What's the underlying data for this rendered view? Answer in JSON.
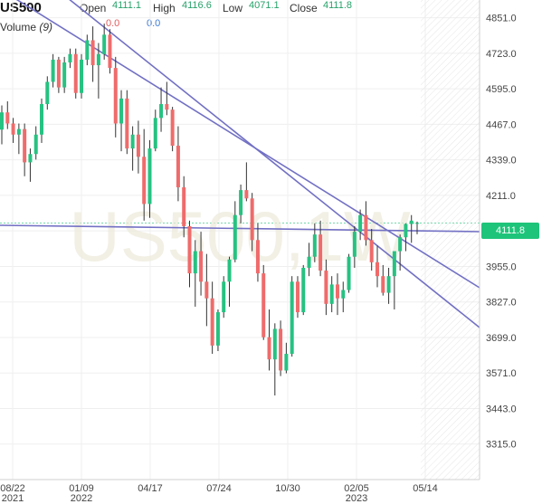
{
  "header": {
    "symbol": "US500",
    "open_label": "Open",
    "open_value": "4111.1",
    "high_label": "High",
    "high_value": "4116.6",
    "low_label": "Low",
    "low_value": "4071.1",
    "close_label": "Close",
    "close_value": "4111.8",
    "volume_label": "Volume",
    "volume_period": "(9)",
    "volume_value_1": "0.0",
    "volume_value_2": "0.0"
  },
  "watermark": "US500,1W",
  "last_price_tag": "4111.8",
  "colors": {
    "up": "#26c281",
    "down": "#ef6b6b",
    "trendline": "#6f6cc0",
    "grid": "#ececec",
    "last_price": "#1ec47a"
  },
  "chart_data": {
    "type": "candlestick",
    "timeframe": "1W",
    "ylim": [
      3187,
      4915
    ],
    "y_ticks": [
      "4851.0",
      "4723.0",
      "4595.0",
      "4467.0",
      "4339.0",
      "4211.0",
      "4083.0",
      "3955.0",
      "3827.0",
      "3699.0",
      "3571.0",
      "3443.0",
      "3315.0"
    ],
    "x_ticks": [
      {
        "label": "08/22",
        "sub": "2021"
      },
      {
        "label": "01/09",
        "sub": "2022"
      },
      {
        "label": "04/17",
        "sub": ""
      },
      {
        "label": "07/24",
        "sub": ""
      },
      {
        "label": "10/30",
        "sub": ""
      },
      {
        "label": "02/05",
        "sub": "2023"
      },
      {
        "label": "05/14",
        "sub": ""
      }
    ],
    "last_price": 4111.8,
    "candles": [
      [
        4448,
        4535,
        4395,
        4510
      ],
      [
        4510,
        4550,
        4450,
        4470
      ],
      [
        4470,
        4490,
        4400,
        4430
      ],
      [
        4430,
        4470,
        4360,
        4450
      ],
      [
        4450,
        4470,
        4280,
        4330
      ],
      [
        4330,
        4380,
        4260,
        4360
      ],
      [
        4360,
        4460,
        4340,
        4430
      ],
      [
        4430,
        4560,
        4400,
        4540
      ],
      [
        4540,
        4640,
        4520,
        4620
      ],
      [
        4620,
        4720,
        4600,
        4700
      ],
      [
        4700,
        4710,
        4580,
        4600
      ],
      [
        4600,
        4710,
        4580,
        4690
      ],
      [
        4690,
        4740,
        4670,
        4720
      ],
      [
        4720,
        4740,
        4560,
        4580
      ],
      [
        4580,
        4720,
        4560,
        4700
      ],
      [
        4700,
        4790,
        4680,
        4770
      ],
      [
        4770,
        4820,
        4620,
        4680
      ],
      [
        4680,
        4760,
        4560,
        4720
      ],
      [
        4720,
        4830,
        4700,
        4790
      ],
      [
        4790,
        4810,
        4650,
        4670
      ],
      [
        4670,
        4710,
        4420,
        4470
      ],
      [
        4470,
        4590,
        4370,
        4560
      ],
      [
        4560,
        4590,
        4360,
        4380
      ],
      [
        4380,
        4460,
        4300,
        4430
      ],
      [
        4430,
        4480,
        4290,
        4350
      ],
      [
        4350,
        4450,
        4120,
        4180
      ],
      [
        4180,
        4410,
        4130,
        4380
      ],
      [
        4380,
        4520,
        4370,
        4490
      ],
      [
        4490,
        4600,
        4440,
        4540
      ],
      [
        4540,
        4620,
        4500,
        4520
      ],
      [
        4520,
        4530,
        4370,
        4390
      ],
      [
        4390,
        4460,
        4190,
        4240
      ],
      [
        4240,
        4280,
        4060,
        4100
      ],
      [
        4100,
        4120,
        3880,
        3930
      ],
      [
        3930,
        4050,
        3810,
        4010
      ],
      [
        4010,
        4080,
        3850,
        3900
      ],
      [
        3900,
        4000,
        3740,
        3840
      ],
      [
        3840,
        3900,
        3640,
        3670
      ],
      [
        3670,
        3800,
        3650,
        3790
      ],
      [
        3790,
        3920,
        3770,
        3900
      ],
      [
        3900,
        3990,
        3810,
        3980
      ],
      [
        3980,
        4190,
        3970,
        4140
      ],
      [
        4140,
        4250,
        4110,
        4230
      ],
      [
        4230,
        4330,
        4190,
        4200
      ],
      [
        4200,
        4220,
        4010,
        4050
      ],
      [
        4050,
        4110,
        3900,
        3930
      ],
      [
        3930,
        3960,
        3690,
        3700
      ],
      [
        3700,
        3800,
        3580,
        3620
      ],
      [
        3620,
        3750,
        3490,
        3730
      ],
      [
        3730,
        3760,
        3560,
        3580
      ],
      [
        3580,
        3680,
        3570,
        3640
      ],
      [
        3640,
        3920,
        3630,
        3900
      ],
      [
        3900,
        3920,
        3770,
        3790
      ],
      [
        3790,
        3960,
        3780,
        3950
      ],
      [
        3950,
        4040,
        3920,
        3990
      ],
      [
        3990,
        4110,
        3970,
        4070
      ],
      [
        4070,
        4120,
        3920,
        3940
      ],
      [
        3940,
        3980,
        3780,
        3820
      ],
      [
        3820,
        3920,
        3790,
        3890
      ],
      [
        3890,
        3930,
        3780,
        3840
      ],
      [
        3840,
        3900,
        3790,
        3870
      ],
      [
        3870,
        4000,
        3860,
        3990
      ],
      [
        3990,
        4100,
        3950,
        4080
      ],
      [
        4080,
        4160,
        4050,
        4140
      ],
      [
        4140,
        4190,
        4030,
        4050
      ],
      [
        4050,
        4090,
        3940,
        3970
      ],
      [
        3970,
        4030,
        3880,
        3920
      ],
      [
        3920,
        3960,
        3850,
        3860
      ],
      [
        3860,
        3950,
        3820,
        3920
      ],
      [
        3920,
        4000,
        3800,
        4010
      ],
      [
        4010,
        4070,
        3940,
        4060
      ],
      [
        4060,
        4110,
        4010,
        4108
      ],
      [
        4108,
        4140,
        4040,
        4120
      ],
      [
        4111.1,
        4116.6,
        4071.1,
        4111.8
      ]
    ]
  }
}
